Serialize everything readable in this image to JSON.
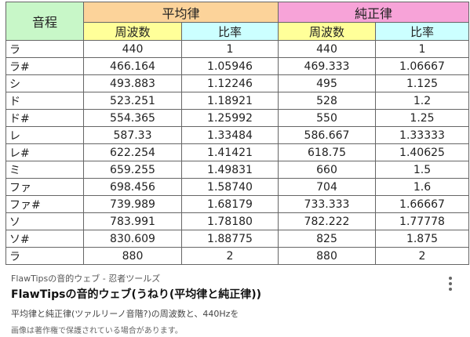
{
  "table": {
    "header": {
      "pitch": "音程",
      "equal": "平均律",
      "just": "純正律",
      "freq": "周波数",
      "ratio": "比率"
    },
    "rows": [
      [
        "ラ",
        "440",
        "1",
        "440",
        "1"
      ],
      [
        "ラ#",
        "466.164",
        "1.05946",
        "469.333",
        "1.06667"
      ],
      [
        "シ",
        "493.883",
        "1.12246",
        "495",
        "1.125"
      ],
      [
        "ド",
        "523.251",
        "1.18921",
        "528",
        "1.2"
      ],
      [
        "ド#",
        "554.365",
        "1.25992",
        "550",
        "1.25"
      ],
      [
        "レ",
        "587.33",
        "1.33484",
        "586.667",
        "1.33333"
      ],
      [
        "レ#",
        "622.254",
        "1.41421",
        "618.75",
        "1.40625"
      ],
      [
        "ミ",
        "659.255",
        "1.49831",
        "660",
        "1.5"
      ],
      [
        "ファ",
        "698.456",
        "1.58740",
        "704",
        "1.6"
      ],
      [
        "ファ#",
        "739.989",
        "1.68179",
        "733.333",
        "1.66667"
      ],
      [
        "ソ",
        "783.991",
        "1.78180",
        "782.222",
        "1.77778"
      ],
      [
        "ソ#",
        "830.609",
        "1.88775",
        "825",
        "1.875"
      ],
      [
        "ラ",
        "880",
        "2",
        "880",
        "2"
      ]
    ]
  },
  "result": {
    "source": "FlawTipsの音的ウェブ - 忍者ツールズ",
    "title": "FlawTipsの音的ウェブ(うねり(平均律と純正律))",
    "description": "平均律と純正律(ツァルリーノ音階?)の周波数と、440Hzを",
    "notice": "画像は著作権で保護されている場合があります。"
  }
}
